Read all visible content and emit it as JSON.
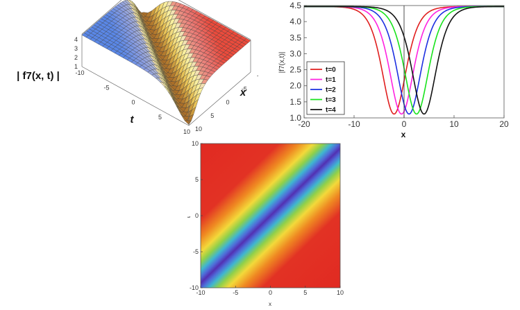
{
  "chart_data": [
    {
      "type": "surface3d",
      "zlabel": "| f7(x, t) |",
      "xlabel": "x",
      "ylabel": "t",
      "x_ticks": [
        "-10",
        "-5",
        "0",
        "5",
        "10"
      ],
      "t_ticks": [
        "-10",
        "-5",
        "0",
        "5",
        "10"
      ],
      "z_ticks": [
        "1",
        "2",
        "3",
        "4"
      ],
      "x_range": [
        -10,
        10
      ],
      "t_range": [
        -10,
        10
      ],
      "z_range": [
        1,
        4.5
      ],
      "function_samples": {
        "background": 4.5,
        "minimum": 1.1,
        "trough_line": "x ≈ t"
      }
    },
    {
      "type": "line",
      "xlabel": "x",
      "ylabel": "|f7(x,t)|",
      "xlim": [
        -20,
        20
      ],
      "ylim": [
        1.0,
        4.5
      ],
      "x_ticks": [
        "-20",
        "-10",
        "0",
        "10",
        "20"
      ],
      "y_ticks": [
        "1.0",
        "1.5",
        "2.0",
        "2.5",
        "3.0",
        "3.5",
        "4.0",
        "4.5"
      ],
      "legend_position": "bottom-left",
      "series": [
        {
          "name": "t=0",
          "color": "#e01e1e",
          "min_x": -2,
          "min_y": 1.12,
          "plateau": 4.47
        },
        {
          "name": "t=1",
          "color": "#ff22e0",
          "min_x": -0.5,
          "min_y": 1.12,
          "plateau": 4.47
        },
        {
          "name": "t=2",
          "color": "#1c2fe0",
          "min_x": 1,
          "min_y": 1.12,
          "plateau": 4.47
        },
        {
          "name": "t=3",
          "color": "#18e31c",
          "min_x": 2.5,
          "min_y": 1.12,
          "plateau": 4.47
        },
        {
          "name": "t=4",
          "color": "#111111",
          "min_x": 4,
          "min_y": 1.12,
          "plateau": 4.47
        }
      ]
    },
    {
      "type": "heatmap",
      "xlabel": "x",
      "ylabel": "t",
      "xlim": [
        -10,
        10
      ],
      "ylim": [
        -10,
        10
      ],
      "x_ticks": [
        "-10",
        "-5",
        "0",
        "5",
        "10"
      ],
      "y_ticks": [
        "-10",
        "-5",
        "0",
        "5",
        "10"
      ],
      "trough_line": "x ≈ t",
      "colors": {
        "low": "#4a2fb0",
        "high": "#e02a20"
      }
    }
  ]
}
